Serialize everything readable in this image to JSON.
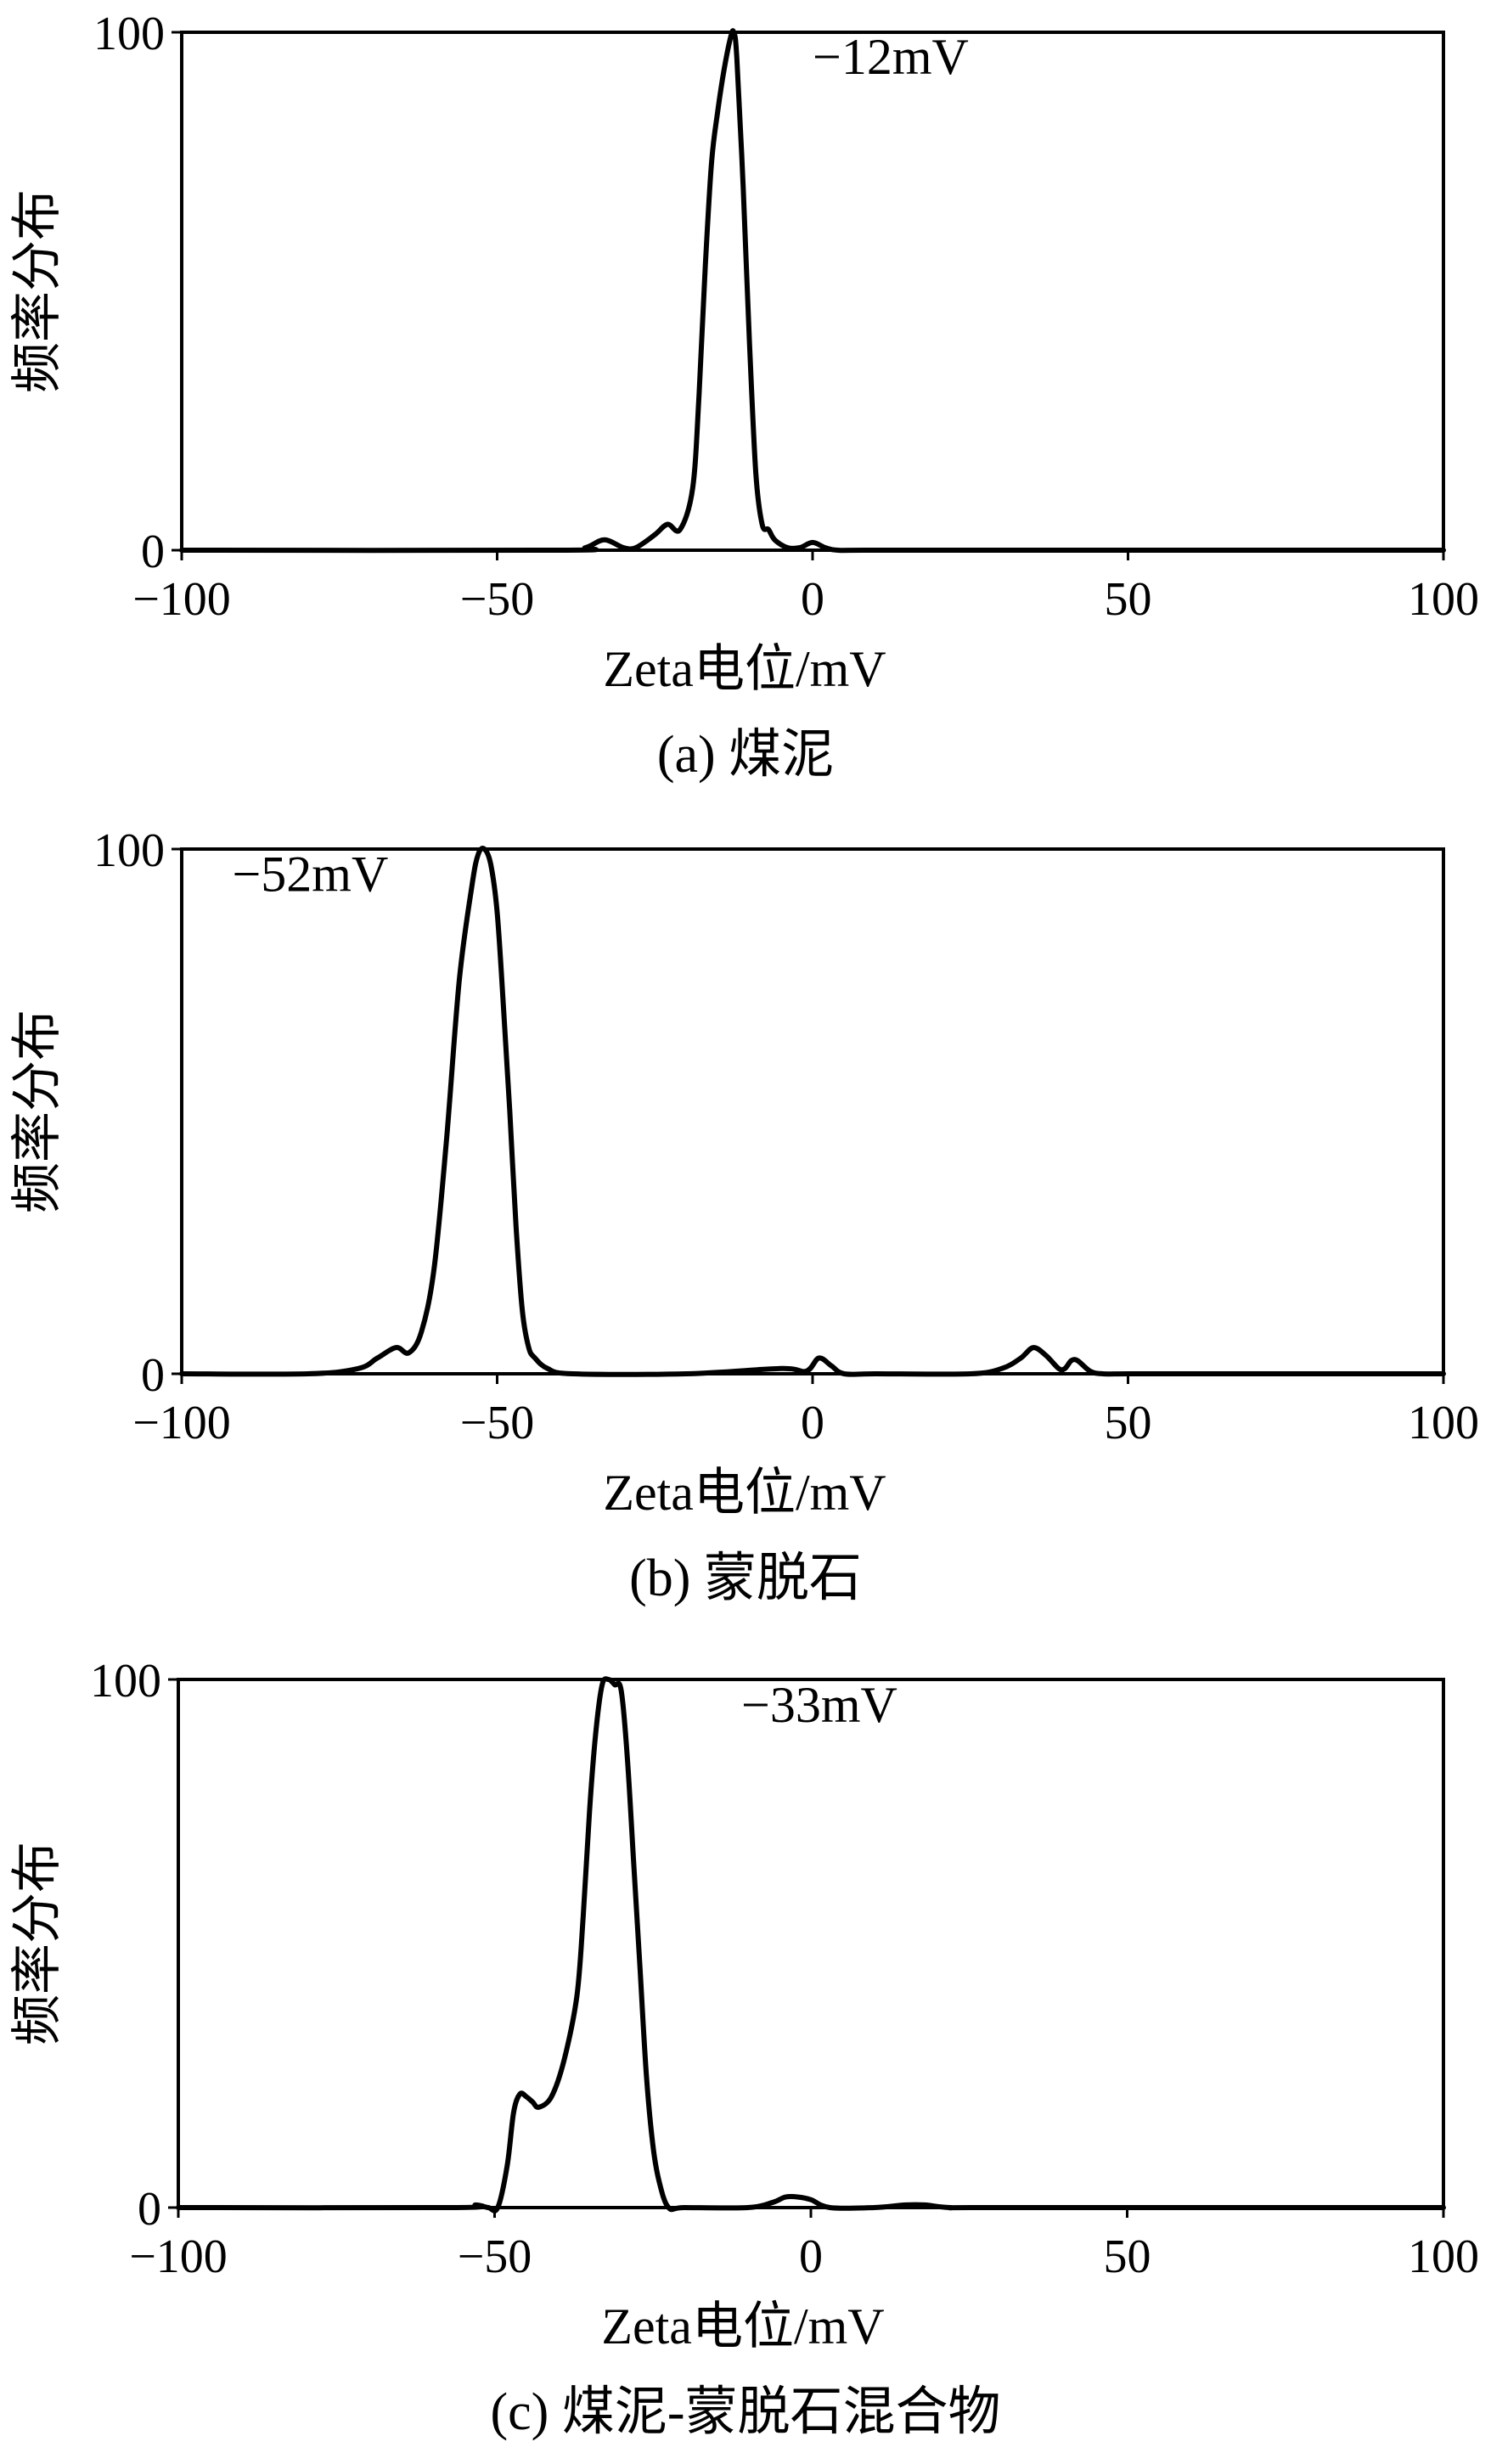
{
  "chart_data": [
    {
      "type": "line",
      "caption": "(a) 煤泥",
      "xlabel": "Zeta电位/mV",
      "ylabel": "频率分布",
      "xlim": [
        -100,
        100
      ],
      "ylim": [
        0,
        100
      ],
      "xticks": [
        -100,
        -50,
        0,
        50,
        100
      ],
      "xtick_labels": [
        "−100",
        "−50",
        "0",
        "50",
        "100"
      ],
      "yticks": [
        0,
        100
      ],
      "ytick_labels": [
        "0",
        "100"
      ],
      "annotation": {
        "text": "−12mV",
        "x": 0,
        "y": 92
      },
      "series": [
        {
          "color": "#000000",
          "x": [
            -100,
            -40,
            -36,
            -33,
            -30,
            -28,
            -25,
            -23,
            -21,
            -19,
            -18,
            -17,
            -16,
            -15,
            -14,
            -13,
            -12.5,
            -12,
            -11,
            -10,
            -9,
            -8,
            -7,
            -6,
            -4,
            -2,
            0,
            2,
            4,
            10,
            50,
            100
          ],
          "y": [
            0,
            0,
            0.5,
            2,
            0.5,
            0.5,
            3,
            5,
            4,
            12,
            30,
            55,
            75,
            85,
            93,
            99,
            100,
            95,
            70,
            40,
            15,
            5,
            4,
            2,
            0.5,
            0.5,
            1.5,
            0.5,
            0,
            0,
            0,
            0
          ]
        }
      ]
    },
    {
      "type": "line",
      "caption": "(b) 蒙脱石",
      "xlabel": "Zeta电位/mV",
      "ylabel": "频率分布",
      "xlim": [
        -100,
        100
      ],
      "ylim": [
        0,
        100
      ],
      "xticks": [
        -100,
        -50,
        0,
        50,
        100
      ],
      "xtick_labels": [
        "−100",
        "−50",
        "0",
        "50",
        "100"
      ],
      "yticks": [
        0,
        100
      ],
      "ytick_labels": [
        "0",
        "100"
      ],
      "annotation": {
        "text": "−52mV",
        "x": -92,
        "y": 92
      },
      "series": [
        {
          "color": "#000000",
          "x": [
            -100,
            -80,
            -72,
            -69,
            -66,
            -64,
            -62,
            -60,
            -58,
            -56,
            -54,
            -53,
            -52,
            -51,
            -50,
            -49,
            -48,
            -47,
            -46,
            -45,
            -44,
            -42,
            -38,
            -20,
            -5,
            -1,
            1,
            3,
            5,
            10,
            25,
            30,
            33,
            35,
            37,
            39,
            40,
            41,
            42,
            44,
            46,
            50,
            60,
            100
          ],
          "y": [
            0,
            0,
            1,
            3,
            5,
            4,
            8,
            20,
            45,
            75,
            93,
            99,
            100,
            97,
            88,
            70,
            50,
            28,
            12,
            5,
            3,
            1,
            0,
            0,
            1,
            0.5,
            3,
            1.5,
            0,
            0,
            0,
            1,
            3,
            5,
            3.5,
            1,
            1,
            2.5,
            2.5,
            0.5,
            0,
            0,
            0,
            0
          ]
        }
      ]
    },
    {
      "type": "line",
      "caption": "(c) 煤泥-蒙脱石混合物",
      "xlabel": "Zeta电位/mV",
      "ylabel": "频率分布",
      "xlim": [
        -100,
        100
      ],
      "ylim": [
        0,
        100
      ],
      "xticks": [
        -100,
        -50,
        0,
        50,
        100
      ],
      "xtick_labels": [
        "−100",
        "−50",
        "0",
        "50",
        "100"
      ],
      "yticks": [
        0,
        100
      ],
      "ytick_labels": [
        "0",
        "100"
      ],
      "annotation": {
        "text": "−33mV",
        "x": -11,
        "y": 92
      },
      "series": [
        {
          "color": "#000000",
          "x": [
            -100,
            -56,
            -53,
            -51,
            -49.5,
            -48,
            -47,
            -46,
            -45,
            -44,
            -43,
            -41,
            -39,
            -37,
            -36,
            -35,
            -34,
            -33,
            -32,
            -31,
            -30,
            -29,
            -28,
            -27,
            -26,
            -25,
            -24,
            -22.5,
            -20,
            -10,
            -6,
            -4,
            -2,
            0,
            3,
            10,
            15,
            18,
            22,
            30,
            100
          ],
          "y": [
            0,
            0,
            0.5,
            0,
            0,
            8,
            18,
            21.5,
            21,
            20,
            19,
            21,
            28,
            40,
            55,
            75,
            90,
            99,
            100,
            99,
            98,
            85,
            65,
            45,
            25,
            12,
            5,
            0,
            0,
            0,
            1,
            2,
            2,
            1.5,
            0,
            0,
            0.5,
            0.5,
            0,
            0,
            0
          ]
        }
      ]
    }
  ]
}
